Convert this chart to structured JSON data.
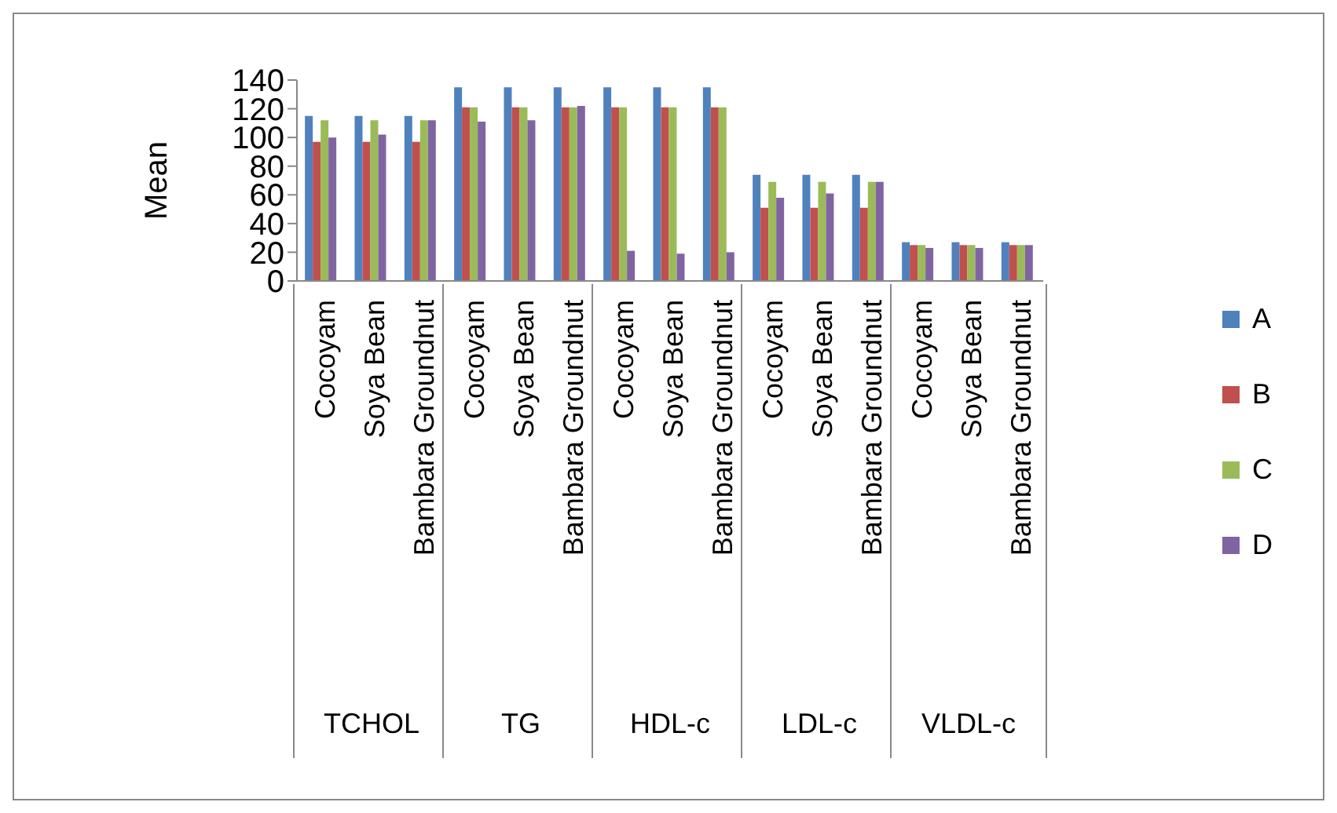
{
  "chart_data": {
    "type": "bar",
    "ylabel": "Mean",
    "categories": [
      "Cocoyam",
      "Soya Bean",
      "Bambara Groundnut",
      "Cocoyam",
      "Soya Bean",
      "Bambara Groundnut",
      "Cocoyam",
      "Soya Bean",
      "Bambara Groundnut",
      "Cocoyam",
      "Soya Bean",
      "Bambara Groundnut",
      "Cocoyam",
      "Soya Bean",
      "Bambara Groundnut"
    ],
    "annotations": [
      "TCHOL",
      "TG",
      "HDL-c",
      "LDL-c",
      "VLDL-c"
    ],
    "series": [
      {
        "name": "A",
        "color": "#4f81bd",
        "values": [
          115,
          115,
          115,
          135,
          135,
          135,
          135,
          135,
          135,
          74,
          74,
          74,
          27,
          27,
          27
        ]
      },
      {
        "name": "B",
        "color": "#c0504d",
        "values": [
          97,
          97,
          97,
          121,
          121,
          121,
          121,
          121,
          121,
          51,
          51,
          51,
          25,
          25,
          25
        ]
      },
      {
        "name": "C",
        "color": "#9bbb59",
        "values": [
          112,
          112,
          112,
          121,
          121,
          121,
          121,
          121,
          121,
          69,
          69,
          69,
          25,
          25,
          25
        ]
      },
      {
        "name": "D",
        "color": "#8064a2",
        "values": [
          100,
          102,
          112,
          111,
          112,
          122,
          21,
          19,
          20,
          58,
          61,
          69,
          23,
          23,
          25
        ]
      }
    ],
    "ylim": [
      0,
      140
    ],
    "yticks": [
      0,
      20,
      40,
      60,
      80,
      100,
      120,
      140
    ],
    "legend": "right"
  }
}
